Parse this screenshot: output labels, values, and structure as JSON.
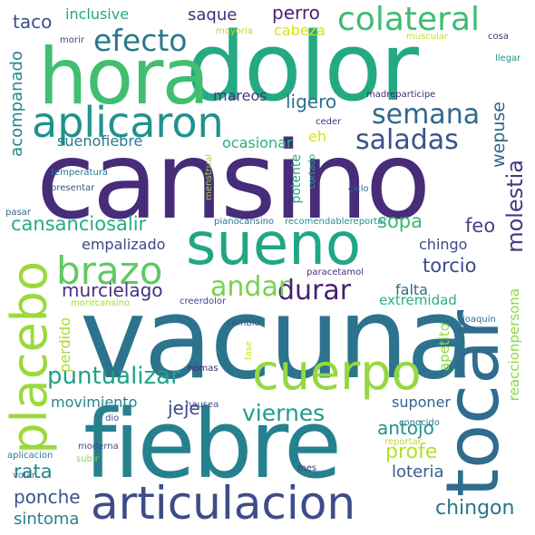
{
  "words": [
    {
      "text": "cansino",
      "color": "#472c7a",
      "orientation": "horizontal",
      "size": "xl"
    },
    {
      "text": "vacuna",
      "color": "#2c738e",
      "orientation": "horizontal",
      "size": "xl"
    },
    {
      "text": "fiebre",
      "color": "#26818e",
      "orientation": "horizontal",
      "size": "xl"
    },
    {
      "text": "dolor",
      "color": "#24aa83",
      "orientation": "horizontal",
      "size": "xl"
    },
    {
      "text": "hora",
      "color": "#42be71",
      "orientation": "horizontal",
      "size": "xl"
    },
    {
      "text": "tocar",
      "color": "#2f6c8e",
      "orientation": "vertical",
      "size": "xl"
    },
    {
      "text": "sueno",
      "color": "#21a685",
      "orientation": "horizontal",
      "size": "l"
    },
    {
      "text": "cuerpo",
      "color": "#95d840",
      "orientation": "horizontal",
      "size": "l"
    },
    {
      "text": "placebo",
      "color": "#9bd93c",
      "orientation": "vertical",
      "size": "l"
    },
    {
      "text": "articulacion",
      "color": "#3e4c8a",
      "orientation": "horizontal",
      "size": "l"
    },
    {
      "text": "aplicaron",
      "color": "#20928c",
      "orientation": "horizontal",
      "size": "l"
    },
    {
      "text": "brazo",
      "color": "#5ec962",
      "orientation": "horizontal",
      "size": "l"
    },
    {
      "text": "colateral",
      "color": "#3dbc74",
      "orientation": "horizontal",
      "size": "m"
    },
    {
      "text": "efecto",
      "color": "#2a788e",
      "orientation": "horizontal",
      "size": "m"
    },
    {
      "text": "semana",
      "color": "#31688e",
      "orientation": "horizontal",
      "size": "m"
    },
    {
      "text": "saladas",
      "color": "#3b528b",
      "orientation": "horizontal",
      "size": "m"
    },
    {
      "text": "durar",
      "color": "#481f70",
      "orientation": "horizontal",
      "size": "m"
    },
    {
      "text": "andar",
      "color": "#7ad151",
      "orientation": "horizontal",
      "size": "m"
    },
    {
      "text": "puntualizar",
      "color": "#1fa188",
      "orientation": "horizontal",
      "size": "m"
    },
    {
      "text": "viernes",
      "color": "#1e9c89",
      "orientation": "horizontal",
      "size": "s"
    },
    {
      "text": "cansanciosalir",
      "color": "#25ab82",
      "orientation": "horizontal",
      "size": "s"
    },
    {
      "text": "sopa",
      "color": "#38b977",
      "orientation": "horizontal",
      "size": "s"
    },
    {
      "text": "feo",
      "color": "#414487",
      "orientation": "horizontal",
      "size": "s"
    },
    {
      "text": "molestia",
      "color": "#453781",
      "orientation": "vertical",
      "size": "s"
    },
    {
      "text": "torcio",
      "color": "#3f4889",
      "orientation": "horizontal",
      "size": "s"
    },
    {
      "text": "murcielago",
      "color": "#46327e",
      "orientation": "horizontal",
      "size": "s"
    },
    {
      "text": "jeje",
      "color": "#3e4989",
      "orientation": "horizontal",
      "size": "s"
    },
    {
      "text": "antojo",
      "color": "#20928c",
      "orientation": "horizontal",
      "size": "s"
    },
    {
      "text": "profe",
      "color": "#b5de2b",
      "orientation": "horizontal",
      "size": "s"
    },
    {
      "text": "rata",
      "color": "#25858e",
      "orientation": "horizontal",
      "size": "s"
    },
    {
      "text": "ponche",
      "color": "#3a548c",
      "orientation": "horizontal",
      "size": "s"
    },
    {
      "text": "chingon",
      "color": "#2c738e",
      "orientation": "horizontal",
      "size": "s"
    },
    {
      "text": "loteria",
      "color": "#365c8d",
      "orientation": "horizontal",
      "size": "xs"
    },
    {
      "text": "sintoma",
      "color": "#26828e",
      "orientation": "horizontal",
      "size": "xs"
    },
    {
      "text": "ligero",
      "color": "#2e6e8e",
      "orientation": "horizontal",
      "size": "xs"
    },
    {
      "text": "wepuse",
      "color": "#31688e",
      "orientation": "vertical",
      "size": "xs"
    },
    {
      "text": "acompanado",
      "color": "#23898e",
      "orientation": "vertical",
      "size": "xs"
    },
    {
      "text": "perro",
      "color": "#482374",
      "orientation": "horizontal",
      "size": "xs"
    },
    {
      "text": "taco",
      "color": "#3b528b",
      "orientation": "horizontal",
      "size": "xs"
    },
    {
      "text": "saque",
      "color": "#472d7b",
      "orientation": "horizontal",
      "size": "xs"
    },
    {
      "text": "inclusive",
      "color": "#22a884",
      "orientation": "horizontal",
      "size": "xs"
    },
    {
      "text": "cabeza",
      "color": "#d8e219",
      "orientation": "horizontal",
      "size": "xs"
    },
    {
      "text": "mareos",
      "color": "#443983",
      "orientation": "horizontal",
      "size": "xs"
    },
    {
      "text": "suenofiebre",
      "color": "#2a788e",
      "orientation": "horizontal",
      "size": "xs"
    },
    {
      "text": "ocasionar",
      "color": "#29af7f",
      "orientation": "horizontal",
      "size": "xs"
    },
    {
      "text": "eh",
      "color": "#d8e219",
      "orientation": "horizontal",
      "size": "xs"
    },
    {
      "text": "empalizado",
      "color": "#404688",
      "orientation": "horizontal",
      "size": "xs"
    },
    {
      "text": "chingo",
      "color": "#3e4a89",
      "orientation": "horizontal",
      "size": "xs"
    },
    {
      "text": "falta",
      "color": "#31688e",
      "orientation": "horizontal",
      "size": "xs"
    },
    {
      "text": "extremidad",
      "color": "#2ab07f",
      "orientation": "horizontal",
      "size": "xs"
    },
    {
      "text": "movimiento",
      "color": "#25848e",
      "orientation": "horizontal",
      "size": "xs"
    },
    {
      "text": "suponer",
      "color": "#33638d",
      "orientation": "horizontal",
      "size": "xs"
    },
    {
      "text": "reaccionpersona",
      "color": "#8fd744",
      "orientation": "vertical",
      "size": "xs"
    },
    {
      "text": "apetito",
      "color": "#90d743",
      "orientation": "vertical",
      "size": "xs"
    },
    {
      "text": "perdido",
      "color": "#a8db34",
      "orientation": "vertical",
      "size": "xs"
    },
    {
      "text": "potente",
      "color": "#25ab82",
      "orientation": "vertical",
      "size": "xs"
    },
    {
      "text": "morir",
      "color": "#404588",
      "orientation": "horizontal",
      "size": "xxs"
    },
    {
      "text": "mayoria",
      "color": "#b0dd2f",
      "orientation": "horizontal",
      "size": "xxs"
    },
    {
      "text": "muscular",
      "color": "#c2df23",
      "orientation": "horizontal",
      "size": "xxs"
    },
    {
      "text": "cosa",
      "color": "#46337e",
      "orientation": "horizontal",
      "size": "xxs"
    },
    {
      "text": "llegar",
      "color": "#1f958b",
      "orientation": "horizontal",
      "size": "xxs"
    },
    {
      "text": "madreparticipe",
      "color": "#482878",
      "orientation": "horizontal",
      "size": "xxs"
    },
    {
      "text": "ceder",
      "color": "#472f7d",
      "orientation": "horizontal",
      "size": "xxs"
    },
    {
      "text": "temperatura",
      "color": "#2a788e",
      "orientation": "horizontal",
      "size": "xxs"
    },
    {
      "text": "presentar",
      "color": "#3b528b",
      "orientation": "horizontal",
      "size": "xxs"
    },
    {
      "text": "menstrual",
      "color": "#9fda3a",
      "orientation": "vertical",
      "size": "xxs"
    },
    {
      "text": "cortado",
      "color": "#22a884",
      "orientation": "vertical",
      "size": "xxs"
    },
    {
      "text": "ciclo",
      "color": "#31688e",
      "orientation": "horizontal",
      "size": "xxs"
    },
    {
      "text": "pasar",
      "color": "#31688e",
      "orientation": "horizontal",
      "size": "xxs"
    },
    {
      "text": "pianocansino",
      "color": "#2a788e",
      "orientation": "horizontal",
      "size": "xxs"
    },
    {
      "text": "recomendablereportar",
      "color": "#20928c",
      "orientation": "horizontal",
      "size": "xxs"
    },
    {
      "text": "paracetamol",
      "color": "#472d7b",
      "orientation": "horizontal",
      "size": "xxs"
    },
    {
      "text": "creerdolor",
      "color": "#3e4989",
      "orientation": "horizontal",
      "size": "xxs"
    },
    {
      "text": "morircansino",
      "color": "#a0da39",
      "orientation": "horizontal",
      "size": "xxs"
    },
    {
      "text": "joaquin",
      "color": "#2f6c8e",
      "orientation": "horizontal",
      "size": "xxs"
    },
    {
      "text": "cambio",
      "color": "#3a548c",
      "orientation": "horizontal",
      "size": "xxs"
    },
    {
      "text": "fase",
      "color": "#d0e11c",
      "orientation": "vertical",
      "size": "xxs"
    },
    {
      "text": "nomas",
      "color": "#482475",
      "orientation": "horizontal",
      "size": "xxs"
    },
    {
      "text": "nausea",
      "color": "#3b528b",
      "orientation": "horizontal",
      "size": "xxs"
    },
    {
      "text": "dio",
      "color": "#3b528b",
      "orientation": "horizontal",
      "size": "xxs"
    },
    {
      "text": "conocido",
      "color": "#2a788e",
      "orientation": "horizontal",
      "size": "xxs"
    },
    {
      "text": "reportar",
      "color": "#bddf26",
      "orientation": "horizontal",
      "size": "xxs"
    },
    {
      "text": "moderna",
      "color": "#3b528b",
      "orientation": "horizontal",
      "size": "xxs"
    },
    {
      "text": "aplicacion",
      "color": "#2a788e",
      "orientation": "horizontal",
      "size": "xxs"
    },
    {
      "text": "subir",
      "color": "#8fd744",
      "orientation": "horizontal",
      "size": "xxs"
    },
    {
      "text": "volar",
      "color": "#31688e",
      "orientation": "horizontal",
      "size": "xxs"
    },
    {
      "text": "mes",
      "color": "#46337e",
      "orientation": "horizontal",
      "size": "xxs"
    }
  ]
}
